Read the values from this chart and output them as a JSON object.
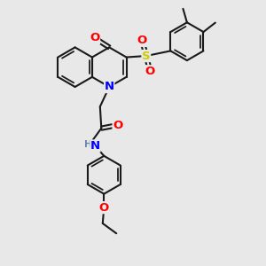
{
  "bg_color": "#e8e8e8",
  "bond_color": "#1a1a1a",
  "bond_width": 1.5,
  "atom_colors": {
    "N": "#0000ff",
    "O": "#ff0000",
    "S": "#cccc00",
    "C": "#1a1a1a",
    "H": "#6688aa"
  },
  "font_size": 8.5,
  "fig_width": 3.0,
  "fig_height": 3.0,
  "dpi": 100
}
